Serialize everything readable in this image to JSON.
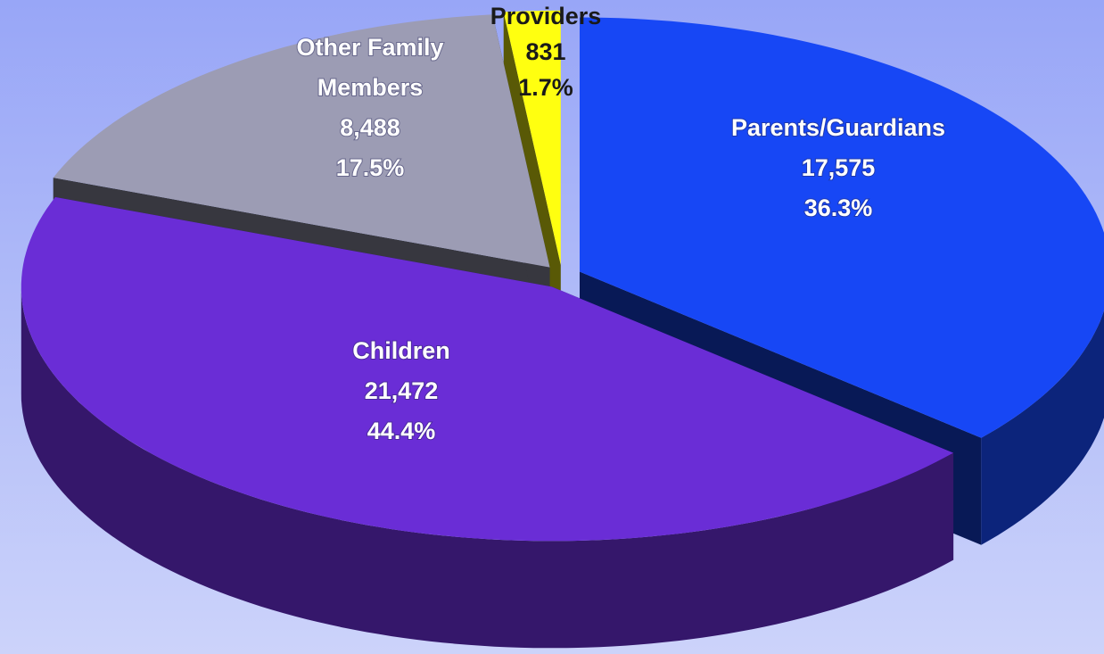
{
  "chart_data": {
    "type": "pie3d",
    "categories": [
      "Parents/Guardians",
      "Children",
      "Other Family Members",
      "Providers"
    ],
    "values": [
      17575,
      21472,
      8488,
      831
    ],
    "value_labels": [
      "17,575",
      "21,472",
      "8,488",
      "831"
    ],
    "percent": [
      36.3,
      44.4,
      17.5,
      1.7
    ],
    "percent_labels": [
      "36.3%",
      "44.4%",
      "17.5%",
      "1.7%"
    ],
    "colors": [
      "#1747f5",
      "#6a2dd6",
      "#9c9cb4",
      "#ffff10"
    ]
  }
}
